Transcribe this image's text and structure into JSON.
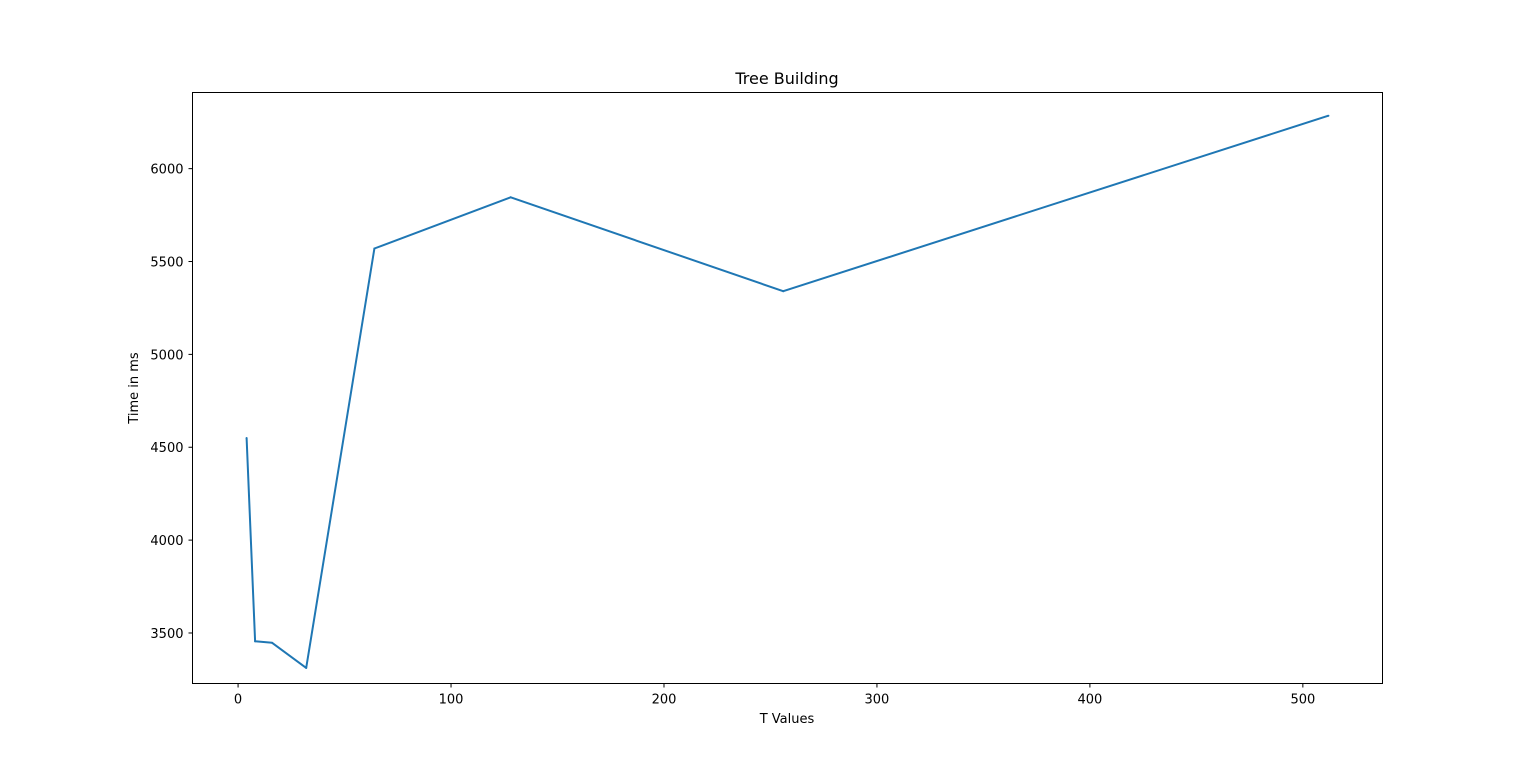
{
  "chart_data": {
    "type": "line",
    "title": "Tree Building",
    "xlabel": "T Values",
    "ylabel": "Time in ms",
    "xlim": [
      -21.4,
      537.4
    ],
    "ylim": [
      3228,
      6410
    ],
    "xticks": [
      0,
      100,
      200,
      300,
      400,
      500
    ],
    "yticks": [
      3500,
      4000,
      4500,
      5000,
      5500,
      6000
    ],
    "grid": false,
    "legend": "none",
    "series": [
      {
        "color": "#1f77b4",
        "x": [
          4,
          8,
          16,
          32,
          64,
          128,
          256,
          512
        ],
        "y": [
          4550,
          3455,
          3447,
          3312,
          5570,
          5846,
          5340,
          6285
        ]
      }
    ]
  }
}
